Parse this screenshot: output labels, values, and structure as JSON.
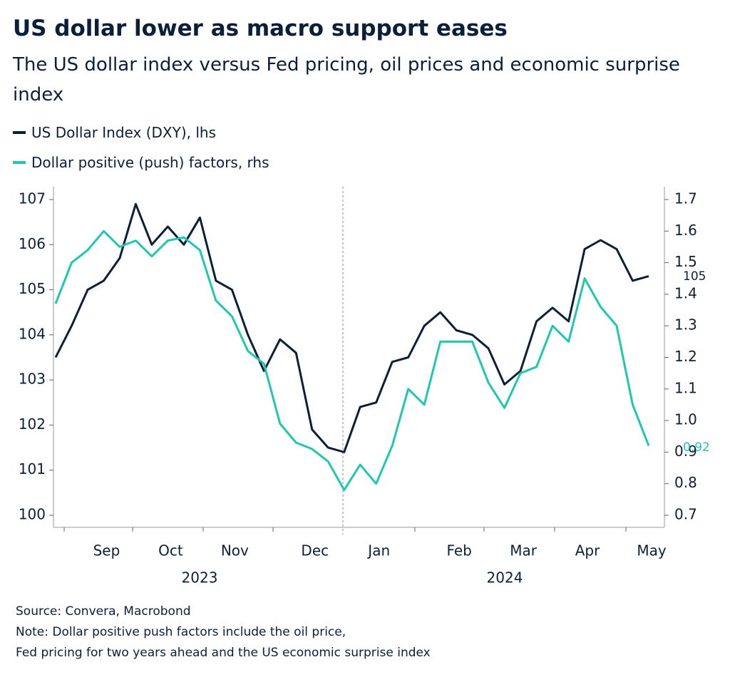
{
  "chart_data": {
    "type": "line",
    "title": "US dollar lower as macro support eases",
    "subtitle": "The US dollar index versus Fed pricing, oil prices and economic surprise index",
    "categories": [
      null,
      null,
      null,
      "Sep",
      null,
      null,
      null,
      "Oct",
      null,
      null,
      null,
      "Nov",
      null,
      null,
      null,
      null,
      "Dec",
      null,
      null,
      null,
      "Jan",
      null,
      null,
      null,
      null,
      "Feb",
      null,
      null,
      null,
      "Mar",
      null,
      null,
      null,
      "Apr",
      null,
      null,
      null,
      "May"
    ],
    "years": [
      "2023",
      "2024"
    ],
    "series": [
      {
        "name": "US Dollar Index (DXY), lhs",
        "color": "#0c1f3a",
        "end_label": "105",
        "values": [
          103.5,
          104.2,
          105.0,
          105.2,
          105.7,
          106.9,
          106.0,
          106.4,
          106.0,
          106.6,
          105.2,
          105.0,
          104.0,
          103.2,
          103.9,
          103.6,
          101.9,
          101.5,
          101.4,
          102.4,
          102.5,
          103.4,
          103.5,
          104.2,
          104.5,
          104.1,
          104.0,
          103.7,
          102.9,
          103.2,
          104.3,
          104.6,
          104.3,
          105.9,
          106.1,
          105.9,
          105.2,
          105.3
        ]
      },
      {
        "name": "Dollar positive (push) factors, rhs",
        "color": "#1ec8b0",
        "axis": "y2",
        "end_label": "0.92",
        "values": [
          1.37,
          1.5,
          1.54,
          1.6,
          1.55,
          1.57,
          1.52,
          1.57,
          1.58,
          1.54,
          1.38,
          1.33,
          1.22,
          1.18,
          0.99,
          0.93,
          0.91,
          0.87,
          0.78,
          0.86,
          0.8,
          0.92,
          1.1,
          1.05,
          1.25,
          1.25,
          1.25,
          1.12,
          1.04,
          1.15,
          1.17,
          1.3,
          1.25,
          1.45,
          1.36,
          1.3,
          1.05,
          0.92
        ]
      }
    ],
    "ylim": [
      100,
      107
    ],
    "yticks": [
      100,
      101,
      102,
      103,
      104,
      105,
      106,
      107
    ],
    "y2lim": [
      0.7,
      1.7
    ],
    "y2ticks": [
      0.7,
      0.8,
      0.9,
      {
        "value": 1,
        "label": "1.0"
      },
      1.1,
      1.2,
      1.3,
      1.4,
      1.5,
      1.6,
      1.7
    ],
    "source": "Source: Convera, Macrobond",
    "notes": [
      "Note: Dollar positive push factors include the oil price,",
      "Fed pricing for two years ahead and the US economic surprise index"
    ]
  }
}
